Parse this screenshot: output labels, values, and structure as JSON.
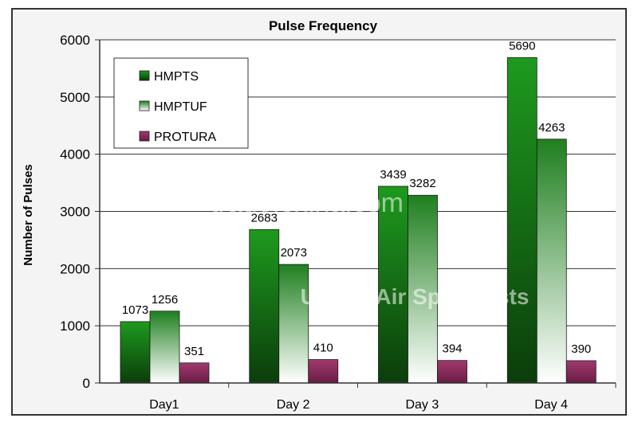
{
  "chart_data": {
    "type": "bar",
    "title": "Pulse Frequency",
    "ylabel": "Number of Pulses",
    "xlabel": "",
    "ylim": [
      0,
      6000
    ],
    "yticks": [
      0,
      1000,
      2000,
      3000,
      4000,
      5000,
      6000
    ],
    "grid": true,
    "legend_position": "top-left",
    "categories": [
      "Day1",
      "Day 2",
      "Day 3",
      "Day 4"
    ],
    "series": [
      {
        "name": "HMPTS",
        "values": [
          1073,
          2683,
          3439,
          5690
        ],
        "color": "#1f8a1f"
      },
      {
        "name": "HMPTUF",
        "values": [
          1256,
          2073,
          3282,
          4263
        ],
        "color": "#2e8b2e"
      },
      {
        "name": "PROTURA",
        "values": [
          351,
          410,
          394,
          390
        ],
        "color": "#8b2a5a"
      }
    ]
  },
  "watermarks": {
    "site": "trade.china.com",
    "company": "United Air Specialists"
  }
}
